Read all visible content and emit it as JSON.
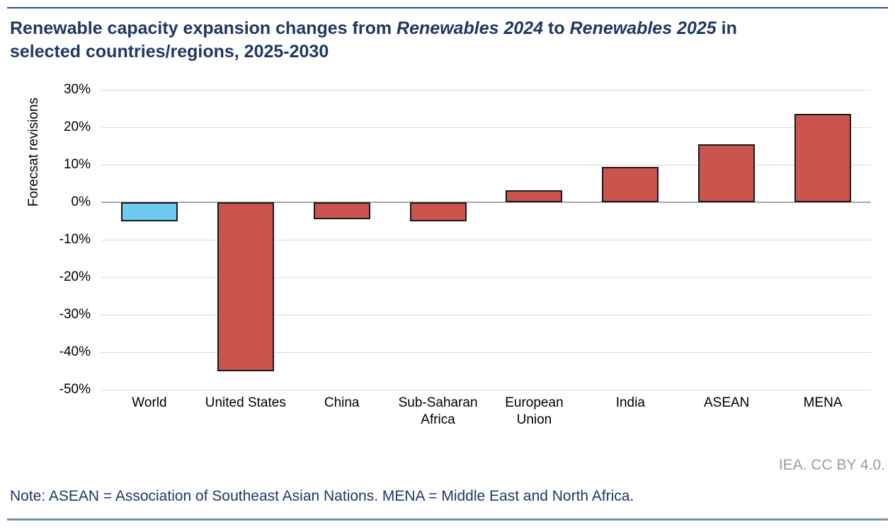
{
  "page": {
    "title_lines": [
      [
        {
          "text": "Renewable capacity expansion changes from ",
          "italic": false
        },
        {
          "text": "Renewables 2024",
          "italic": true
        },
        {
          "text": " to ",
          "italic": false
        },
        {
          "text": "Renewables 2025",
          "italic": true
        },
        {
          "text": " in",
          "italic": false
        }
      ],
      [
        {
          "text": "selected countries/regions, 2025-2030",
          "italic": false
        }
      ]
    ],
    "attribution": "IEA. CC BY 4.0.",
    "note": "Note: ASEAN = Association of Southeast Asian Nations. MENA = Middle East and North Africa."
  },
  "colors": {
    "title": "#1f3864",
    "note": "#1f3864",
    "attribution": "#9c9c9c",
    "top_rule": "#2e4d80",
    "bottom_rule": "#7b8cad",
    "bar_red": "#cb544e",
    "bar_blue": "#70c9f2",
    "bar_border": "#1a1a1a",
    "gridline": "#d9d9d9",
    "zero_line": "#a8a8a8"
  },
  "chart_data": {
    "type": "bar",
    "title": "Renewable capacity expansion changes from Renewables 2024 to Renewables 2025 in selected countries/regions, 2025-2030",
    "xlabel": "",
    "ylabel": "Forecsat revisions",
    "categories": [
      "World",
      "United States",
      "China",
      "Sub-Saharan\nAfrica",
      "European\nUnion",
      "India",
      "ASEAN",
      "MENA"
    ],
    "values": [
      -5,
      -45,
      -4.5,
      -5,
      3.3,
      9.4,
      15.5,
      23.5
    ],
    "bar_color_keys": [
      "bar_blue",
      "bar_red",
      "bar_red",
      "bar_red",
      "bar_red",
      "bar_red",
      "bar_red",
      "bar_red"
    ],
    "yticks": [
      "30%",
      "20%",
      "10%",
      "0%",
      "-10%",
      "-20%",
      "-30%",
      "-40%",
      "-50%"
    ],
    "ytick_values": [
      30,
      20,
      10,
      0,
      -10,
      -20,
      -30,
      -40,
      -50
    ],
    "ylim": [
      -50,
      30
    ],
    "grid": true,
    "legend": false,
    "annotation": "IEA. CC BY 4.0.",
    "note": "Note: ASEAN = Association of Southeast Asian Nations. MENA = Middle East and North Africa."
  }
}
